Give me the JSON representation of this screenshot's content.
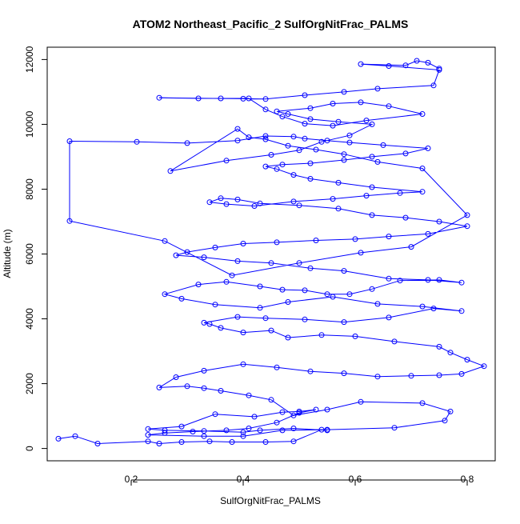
{
  "chart_data": {
    "type": "scatter",
    "title": "ATOM2 Northeast_Pacific_2 SulfOrgNitFrac_PALMS",
    "xlabel": "SulfOrgNitFrac_PALMS",
    "ylabel": "Altitude (m)",
    "xlim": [
      0.05,
      0.85
    ],
    "ylim": [
      -380,
      12380
    ],
    "x_ticks": [
      0.2,
      0.4,
      0.6,
      0.8
    ],
    "x_tick_labels": [
      "0.2",
      "0.4",
      "0.6",
      "0.8"
    ],
    "y_ticks": [
      0,
      2000,
      4000,
      6000,
      8000,
      10000,
      12000
    ],
    "y_tick_labels": [
      "0",
      "2000",
      "4000",
      "6000",
      "8000",
      "10000",
      "12000"
    ],
    "grid": false,
    "series_color": "#0000ff",
    "series": [
      {
        "mode": "lines+markers",
        "x": [
          0.07,
          0.1,
          0.14,
          0.23,
          0.25,
          0.29,
          0.34,
          0.38,
          0.44,
          0.49,
          0.54,
          0.55,
          0.49,
          0.43,
          0.4,
          0.33,
          0.26,
          0.23,
          0.29,
          0.35,
          0.42,
          0.47,
          0.5,
          0.53,
          0.5,
          0.46,
          0.41,
          0.37,
          0.31,
          0.26,
          0.23,
          0.33,
          0.4,
          0.47,
          0.55,
          0.67,
          0.76,
          0.77,
          0.72,
          0.61,
          0.55,
          0.49,
          0.45,
          0.41,
          0.36,
          0.33,
          0.3,
          0.25,
          0.28,
          0.33,
          0.4,
          0.46,
          0.52,
          0.58,
          0.64,
          0.7,
          0.75,
          0.79,
          0.83,
          0.8,
          0.77,
          0.75,
          0.67,
          0.6,
          0.54,
          0.48,
          0.45,
          0.4,
          0.36,
          0.34,
          0.33,
          0.39,
          0.44,
          0.51,
          0.58,
          0.66,
          0.74,
          0.79,
          0.72,
          0.64,
          0.56,
          0.48,
          0.43,
          0.35,
          0.29,
          0.26,
          0.32,
          0.37,
          0.43,
          0.47,
          0.51,
          0.55,
          0.59,
          0.63,
          0.68,
          0.75,
          0.79,
          0.73,
          0.66,
          0.58,
          0.52,
          0.45,
          0.39,
          0.33,
          0.28,
          0.3,
          0.35,
          0.4,
          0.46,
          0.53,
          0.6,
          0.66,
          0.73,
          0.8,
          0.75,
          0.69,
          0.63,
          0.57,
          0.5,
          0.43,
          0.39,
          0.36,
          0.34,
          0.37,
          0.42,
          0.49,
          0.56,
          0.62,
          0.68,
          0.72,
          0.63,
          0.57,
          0.52,
          0.49,
          0.46,
          0.44,
          0.47,
          0.52,
          0.58,
          0.63,
          0.69,
          0.73,
          0.65,
          0.59,
          0.55,
          0.51,
          0.49,
          0.44,
          0.39,
          0.3,
          0.21,
          0.09,
          0.09,
          0.26,
          0.38,
          0.5,
          0.61,
          0.7,
          0.8,
          0.72,
          0.64,
          0.58,
          0.53,
          0.48,
          0.44,
          0.41,
          0.39,
          0.27,
          0.37,
          0.45,
          0.5,
          0.54,
          0.59,
          0.63,
          0.57,
          0.52,
          0.48,
          0.46,
          0.52,
          0.56,
          0.61,
          0.66,
          0.72,
          0.62,
          0.56,
          0.51,
          0.47,
          0.44,
          0.41,
          0.36,
          0.32,
          0.25,
          0.4,
          0.44,
          0.51,
          0.58,
          0.64,
          0.74,
          0.75,
          0.66,
          0.61,
          0.69,
          0.71,
          0.73,
          0.75
        ],
        "y": [
          300,
          380,
          150,
          220,
          150,
          200,
          220,
          200,
          200,
          220,
          580,
          560,
          620,
          560,
          500,
          540,
          560,
          600,
          680,
          1060,
          980,
          1120,
          1140,
          1200,
          1100,
          800,
          620,
          560,
          520,
          480,
          420,
          380,
          380,
          560,
          580,
          640,
          860,
          1140,
          1400,
          1440,
          1200,
          1020,
          1500,
          1640,
          1780,
          1860,
          1920,
          1880,
          2200,
          2400,
          2600,
          2500,
          2380,
          2320,
          2220,
          2240,
          2260,
          2300,
          2540,
          2740,
          2960,
          3140,
          3300,
          3460,
          3500,
          3420,
          3640,
          3580,
          3720,
          3840,
          3880,
          4060,
          4020,
          3980,
          3900,
          4040,
          4320,
          4240,
          4380,
          4460,
          4680,
          4520,
          4340,
          4440,
          4620,
          4760,
          5060,
          5140,
          5000,
          4900,
          4880,
          4760,
          4760,
          4920,
          5180,
          5200,
          5120,
          5200,
          5240,
          5480,
          5560,
          5720,
          5780,
          5900,
          5960,
          6060,
          6200,
          6320,
          6360,
          6420,
          6460,
          6540,
          6620,
          6860,
          7000,
          7120,
          7200,
          7400,
          7500,
          7560,
          7680,
          7720,
          7600,
          7540,
          7480,
          7620,
          7700,
          7800,
          7880,
          7920,
          8060,
          8200,
          8320,
          8440,
          8620,
          8700,
          8760,
          8800,
          8900,
          9000,
          9100,
          9260,
          9360,
          9440,
          9500,
          9560,
          9620,
          9640,
          9500,
          9420,
          9460,
          9480,
          7020,
          6400,
          5340,
          5720,
          6040,
          6220,
          7200,
          8640,
          8840,
          9080,
          9220,
          9340,
          9540,
          9600,
          9860,
          8560,
          8880,
          9060,
          9200,
          9460,
          9660,
          10000,
          10080,
          10160,
          10320,
          10400,
          10500,
          10640,
          10680,
          10560,
          10320,
          10120,
          9960,
          10020,
          10240,
          10460,
          10800,
          10800,
          10800,
          10820,
          10790,
          10780,
          10900,
          11000,
          11100,
          11200,
          11680,
          11800,
          11860,
          11820,
          11960,
          11900,
          11720
        ]
      }
    ]
  }
}
